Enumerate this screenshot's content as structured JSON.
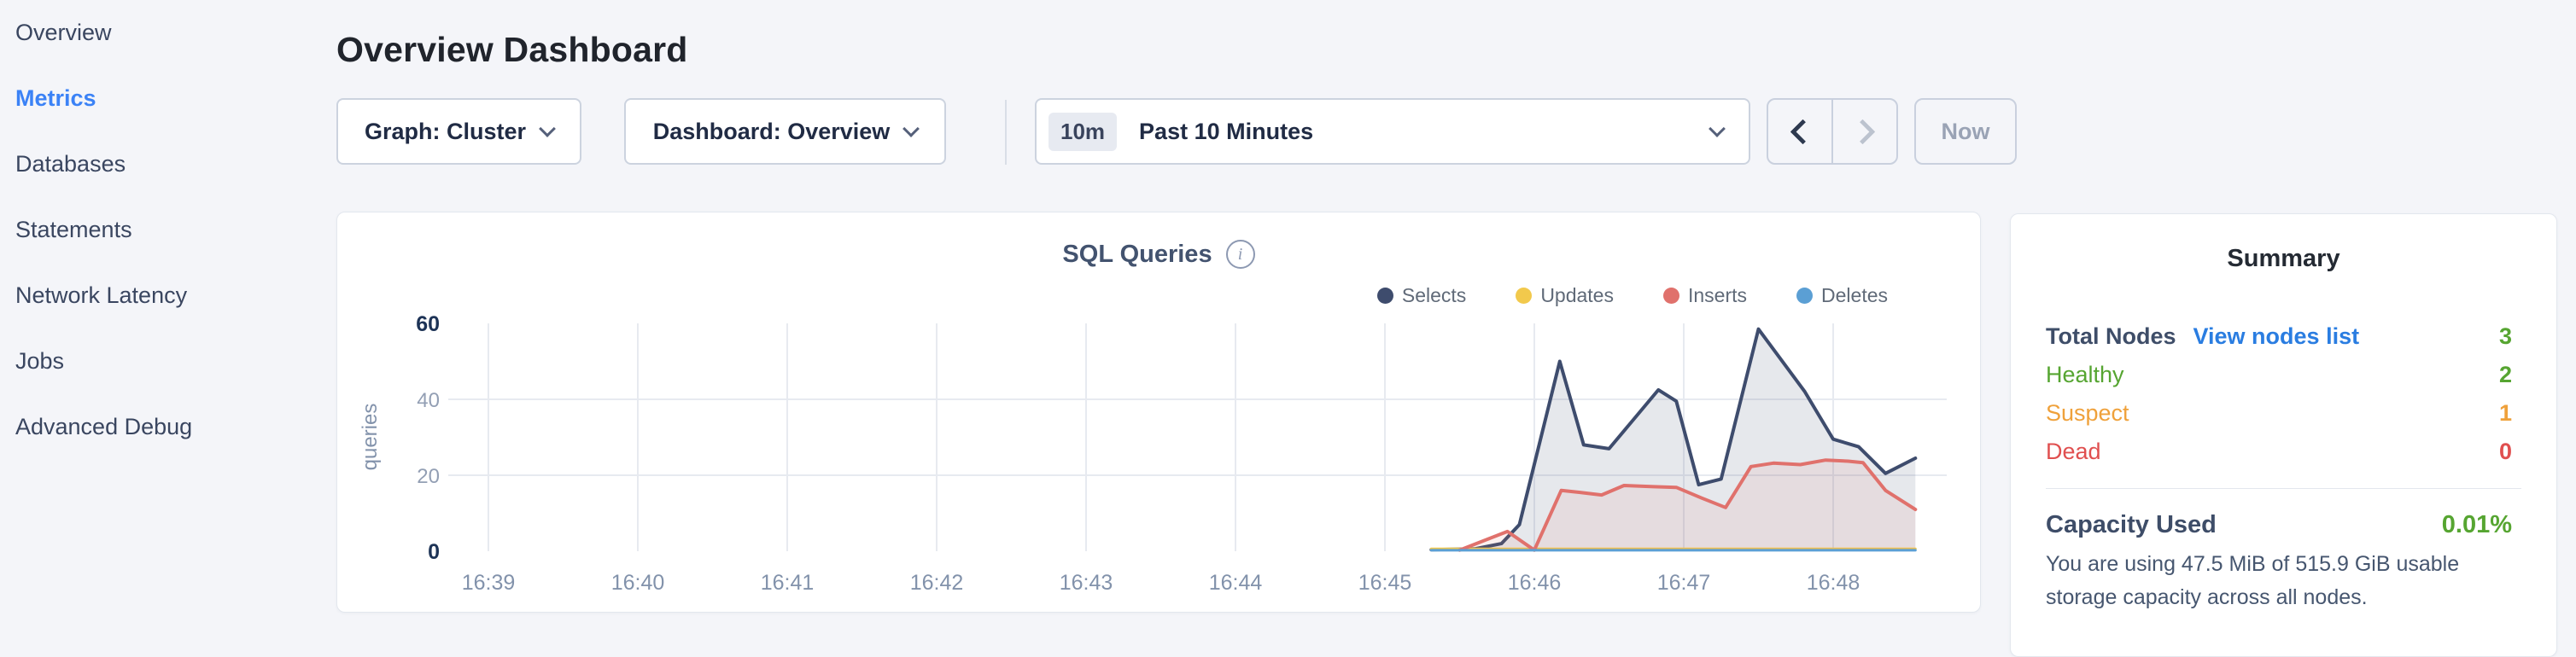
{
  "sidebar": {
    "items": [
      {
        "label": "Overview",
        "active": false
      },
      {
        "label": "Metrics",
        "active": true
      },
      {
        "label": "Databases",
        "active": false
      },
      {
        "label": "Statements",
        "active": false
      },
      {
        "label": "Network Latency",
        "active": false
      },
      {
        "label": "Jobs",
        "active": false
      },
      {
        "label": "Advanced Debug",
        "active": false
      }
    ],
    "active_color": "#3b82f6"
  },
  "header": {
    "title": "Overview Dashboard"
  },
  "controls": {
    "graph_dropdown": {
      "label": "Graph: Cluster"
    },
    "dashboard_dropdown": {
      "label": "Dashboard: Overview"
    },
    "time_selector": {
      "badge": "10m",
      "value": "Past 10 Minutes"
    },
    "now_button": {
      "label": "Now",
      "enabled": false
    },
    "prev_enabled": true,
    "next_enabled": false
  },
  "chart_data": {
    "type": "area",
    "title": "SQL Queries",
    "info_glyph": "i",
    "ylabel": "queries",
    "xlabel": "",
    "ylim": [
      0,
      60
    ],
    "y_ticks": [
      0,
      20,
      40,
      60
    ],
    "x_ticks": [
      "16:39",
      "16:40",
      "16:41",
      "16:42",
      "16:43",
      "16:44",
      "16:45",
      "16:46",
      "16:47",
      "16:48"
    ],
    "x_unit": "minutes after 16:39",
    "grid": true,
    "legend_position": "top-right",
    "series": [
      {
        "name": "Selects",
        "color": "#3e4c6d",
        "fill": "rgba(62,76,109,0.13)",
        "lw": 4,
        "points": [
          [
            6.31,
            0.4
          ],
          [
            6.6,
            0.6
          ],
          [
            6.78,
            2
          ],
          [
            6.9,
            7
          ],
          [
            7.17,
            50
          ],
          [
            7.33,
            28
          ],
          [
            7.5,
            27
          ],
          [
            7.83,
            42.5
          ],
          [
            7.95,
            39.5
          ],
          [
            8.1,
            17.5
          ],
          [
            8.25,
            19
          ],
          [
            8.5,
            58.5
          ],
          [
            8.81,
            42
          ],
          [
            9.0,
            29.5
          ],
          [
            9.17,
            27.5
          ],
          [
            9.35,
            20.5
          ],
          [
            9.55,
            24.5
          ]
        ]
      },
      {
        "name": "Updates",
        "color": "#f2c94c",
        "fill": "none",
        "lw": 3,
        "points": [
          [
            6.31,
            0.6
          ],
          [
            9.55,
            0.6
          ]
        ]
      },
      {
        "name": "Inserts",
        "color": "#e0716c",
        "fill": "rgba(224,113,108,0.10)",
        "lw": 4,
        "points": [
          [
            6.5,
            0.3
          ],
          [
            6.82,
            5.2
          ],
          [
            7.0,
            0.3
          ],
          [
            7.18,
            16
          ],
          [
            7.3,
            15.5
          ],
          [
            7.45,
            14.8
          ],
          [
            7.6,
            17.3
          ],
          [
            7.8,
            17
          ],
          [
            7.95,
            16.8
          ],
          [
            8.12,
            14
          ],
          [
            8.28,
            11.5
          ],
          [
            8.45,
            22.3
          ],
          [
            8.6,
            23.2
          ],
          [
            8.78,
            22.8
          ],
          [
            8.95,
            24
          ],
          [
            9.1,
            23.7
          ],
          [
            9.2,
            23.3
          ],
          [
            9.35,
            16
          ],
          [
            9.55,
            11
          ]
        ]
      },
      {
        "name": "Deletes",
        "color": "#5b9fd4",
        "fill": "none",
        "lw": 3,
        "points": [
          [
            6.31,
            0.25
          ],
          [
            9.55,
            0.25
          ]
        ]
      }
    ]
  },
  "summary": {
    "title": "Summary",
    "rows": [
      {
        "label": "Total Nodes",
        "link": "View nodes list",
        "value": "3",
        "label_color": "#3e4d68",
        "value_color": "#56a531",
        "bold": true
      },
      {
        "label": "Healthy",
        "value": "2",
        "label_color": "#56a531",
        "value_color": "#56a531",
        "bold": false
      },
      {
        "label": "Suspect",
        "value": "1",
        "label_color": "#efa13b",
        "value_color": "#efa13b",
        "bold": false
      },
      {
        "label": "Dead",
        "value": "0",
        "label_color": "#e04f4f",
        "value_color": "#e04f4f",
        "bold": false
      }
    ],
    "capacity": {
      "label": "Capacity Used",
      "value": "0.01%",
      "value_color": "#56a531",
      "description": "You are using 47.5 MiB of 515.9 GiB usable storage capacity across all nodes."
    }
  }
}
